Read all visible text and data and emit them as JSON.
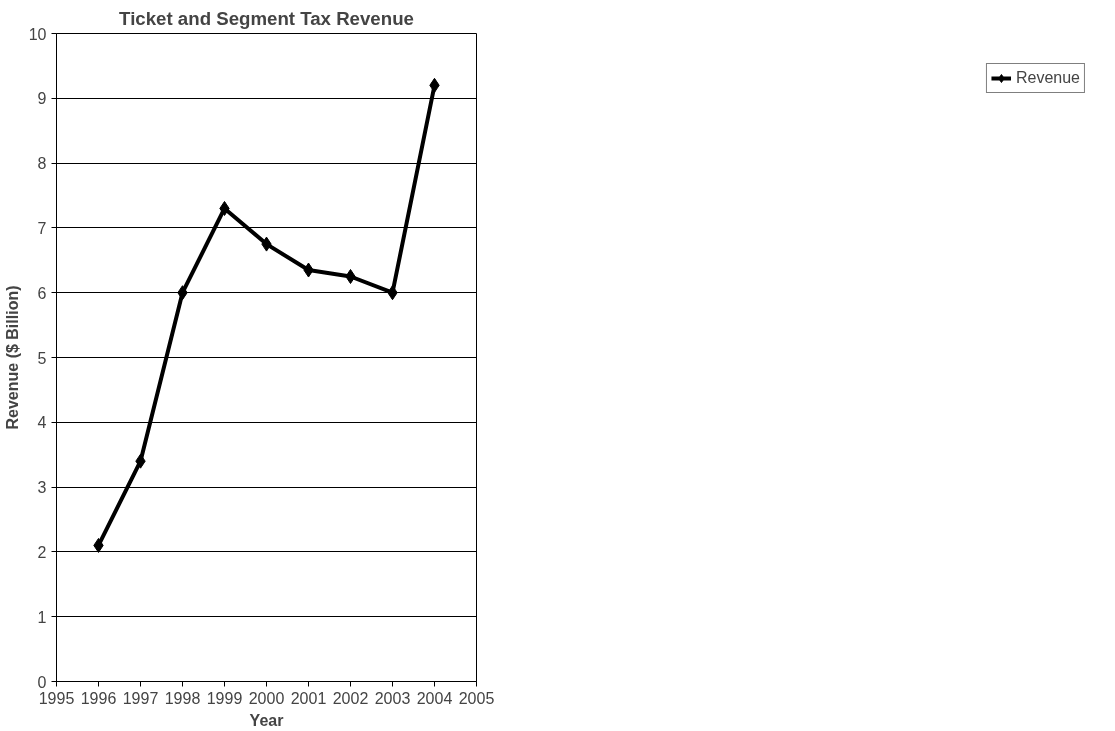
{
  "chart_data": {
    "type": "line",
    "title": "Ticket and Segment Tax Revenue",
    "xlabel": "Year",
    "ylabel": "Revenue ($ Billion)",
    "x": [
      1996,
      1997,
      1998,
      1999,
      2000,
      2001,
      2002,
      2003,
      2004
    ],
    "series": [
      {
        "name": "Revenue",
        "color": "#000000",
        "values": [
          2.1,
          3.4,
          6.0,
          7.3,
          6.75,
          6.35,
          6.25,
          6.0,
          9.2
        ]
      }
    ],
    "xlim": [
      1995,
      2005
    ],
    "xticks": [
      1995,
      1996,
      1997,
      1998,
      1999,
      2000,
      2001,
      2002,
      2003,
      2004,
      2005
    ],
    "ylim": [
      0,
      10
    ],
    "yticks": [
      0,
      1,
      2,
      3,
      4,
      5,
      6,
      7,
      8,
      9,
      10
    ],
    "grid": "y",
    "legend": "right",
    "marker": "diamond",
    "line_style": "solid"
  }
}
